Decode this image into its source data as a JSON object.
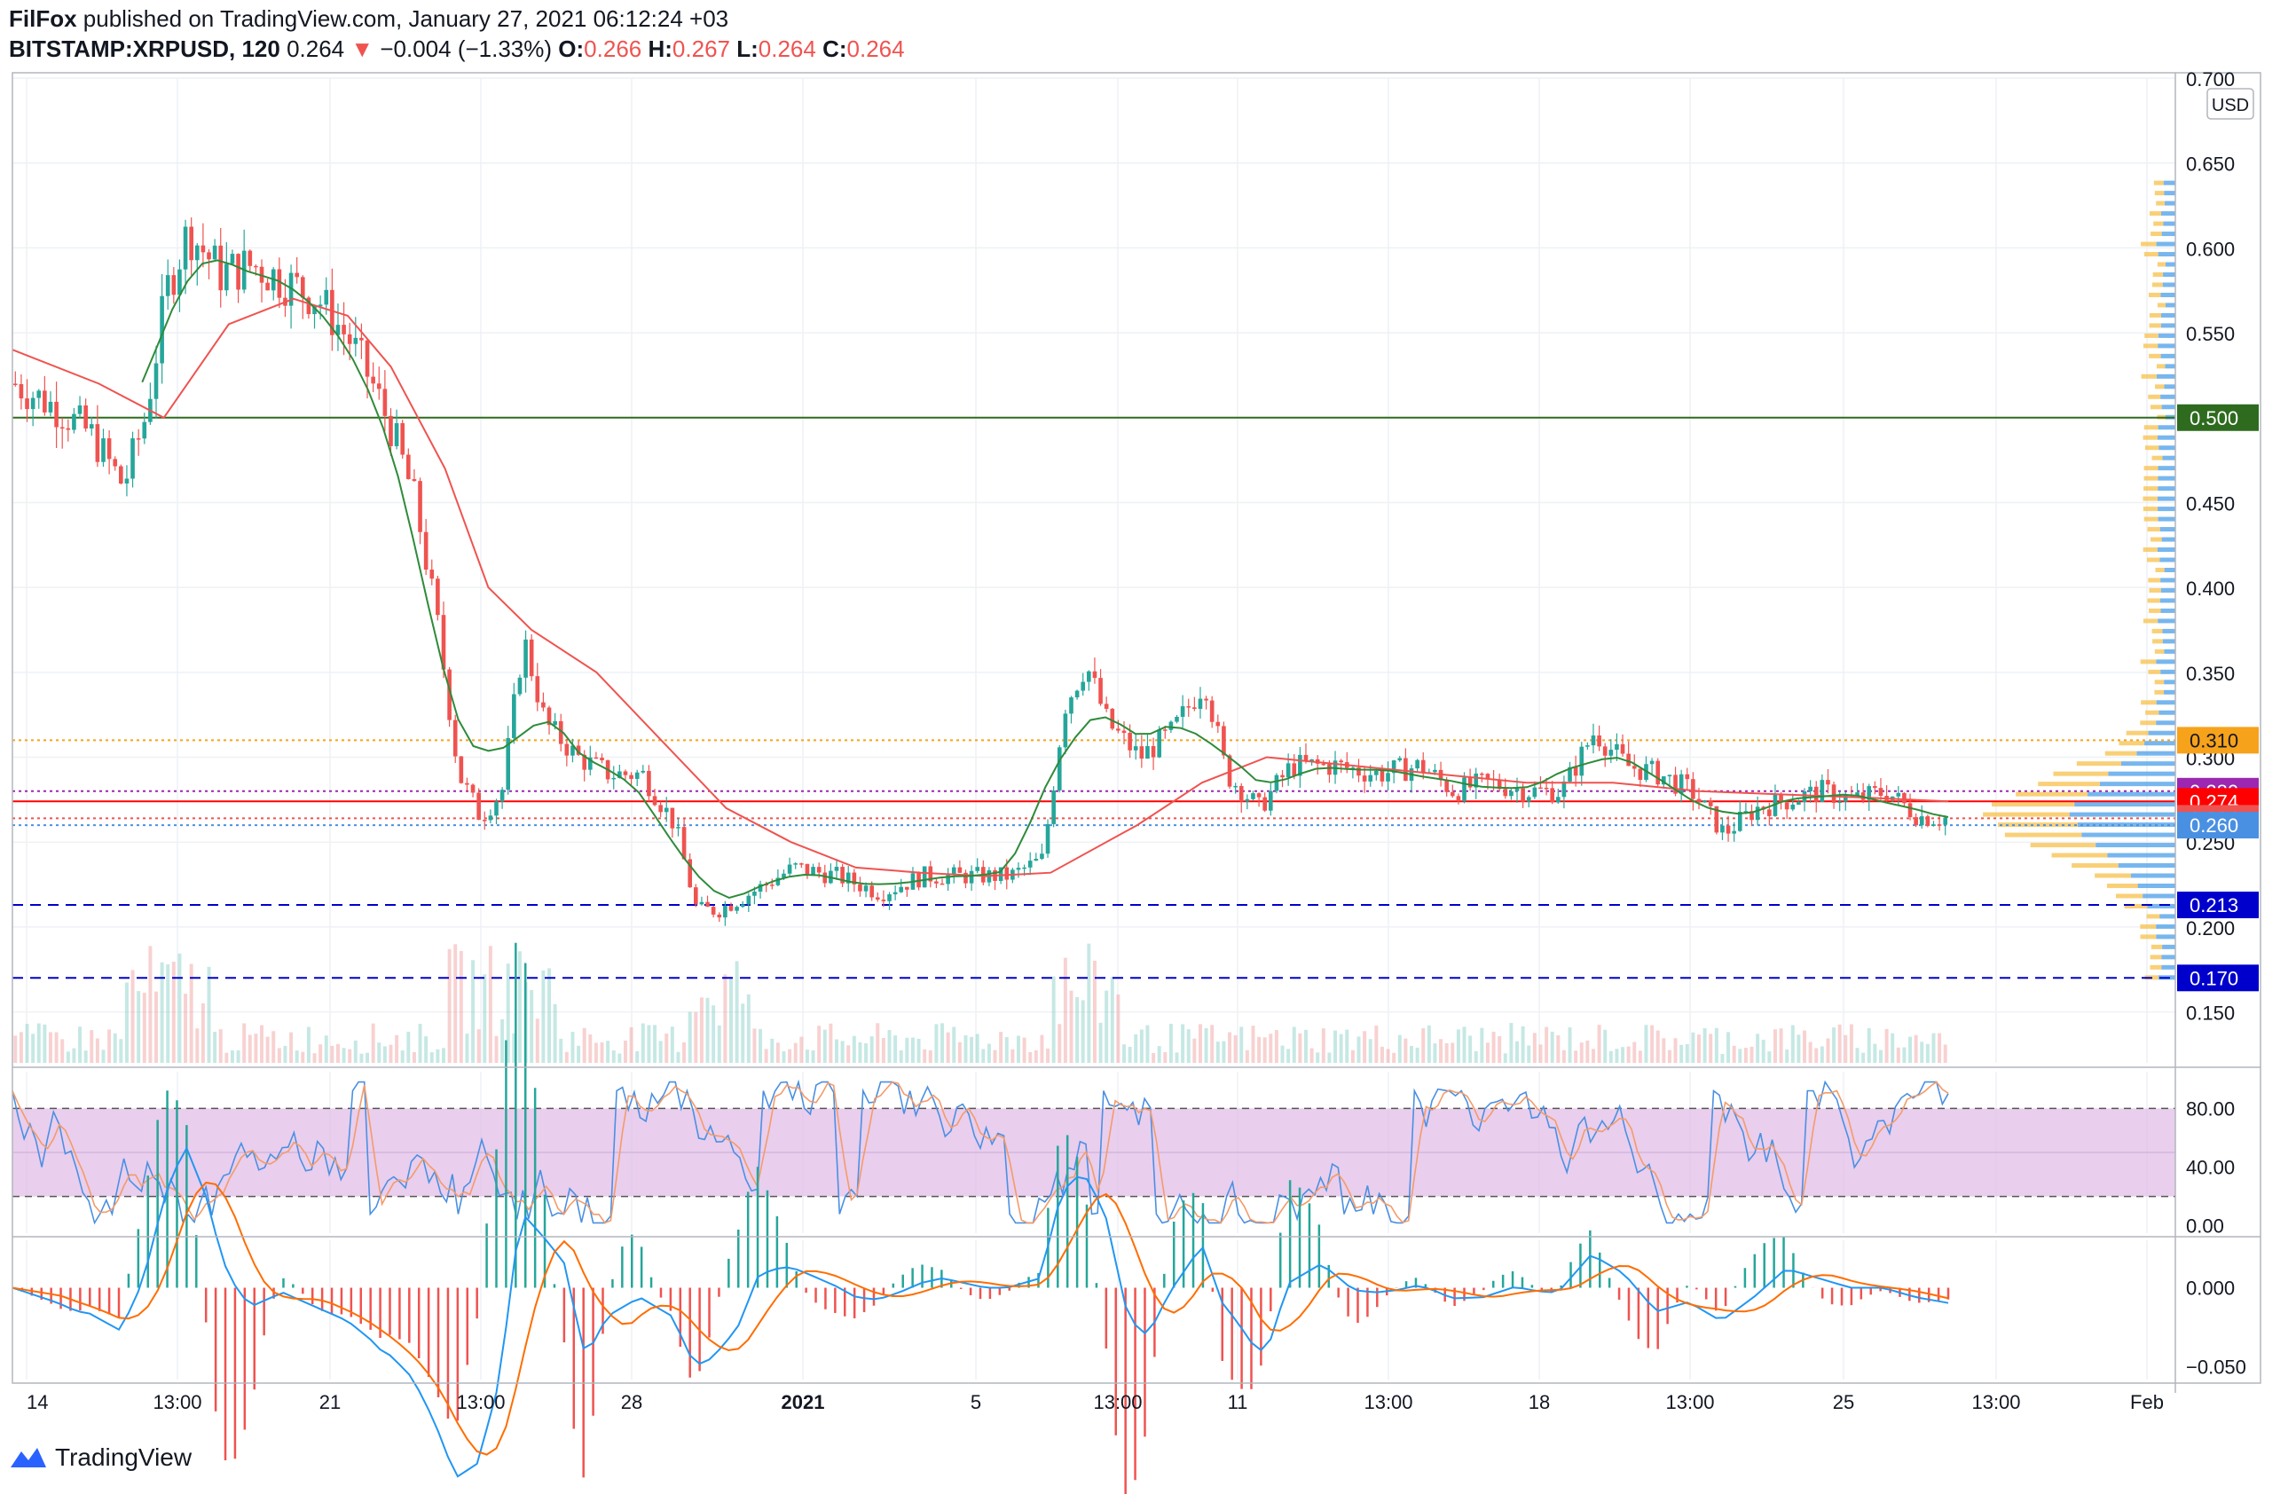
{
  "header": {
    "publisher": "FilFox",
    "published_text": "published on TradingView.com, January 27, 2021 06:12:24 +03",
    "symbol": "BITSTAMP:XRPUSD",
    "interval": "120",
    "last": "0.264",
    "arrow": "▼",
    "change": "−0.004 (−1.33%)",
    "o_label": "O:",
    "o_value": "0.266",
    "h_label": "H:",
    "h_value": "0.267",
    "l_label": "L:",
    "l_value": "0.264",
    "c_label": "C:",
    "c_value": "0.264"
  },
  "brand": {
    "name": "TradingView"
  },
  "currency": "USD",
  "colors": {
    "up": "#26a69a",
    "down": "#ef5350",
    "ma_fast": "#2e8b3a",
    "ma_slow": "#ef5350",
    "level_500": "#2e6b1f",
    "level_310": "#f7a21b",
    "level_280": "#9c27b0",
    "level_274": "#ff0000",
    "level_264": "#ef5350",
    "level_260": "#4a90e2",
    "level_213": "#0000cc",
    "level_170": "#0000cc",
    "stoch_band": "#e1bee7"
  },
  "chart_data": [
    {
      "type": "candlestick",
      "x_ticks": [
        "14",
        "13:00",
        "21",
        "13:00",
        "28",
        "2021",
        "5",
        "13:00",
        "11",
        "13:00",
        "18",
        "13:00",
        "25",
        "13:00",
        "Feb"
      ],
      "y_ticks": [
        "0.700",
        "0.650",
        "0.600",
        "0.550",
        "0.500",
        "0.450",
        "0.400",
        "0.350",
        "0.300",
        "0.250",
        "0.200",
        "0.150"
      ],
      "ylim": [
        0.12,
        0.7
      ],
      "close_path": [
        [
          0.0,
          0.52
        ],
        [
          0.02,
          0.505
        ],
        [
          0.035,
          0.49
        ],
        [
          0.05,
          0.46
        ],
        [
          0.06,
          0.5
        ],
        [
          0.07,
          0.575
        ],
        [
          0.08,
          0.61
        ],
        [
          0.095,
          0.585
        ],
        [
          0.11,
          0.59
        ],
        [
          0.125,
          0.58
        ],
        [
          0.14,
          0.57
        ],
        [
          0.155,
          0.545
        ],
        [
          0.165,
          0.52
        ],
        [
          0.175,
          0.49
        ],
        [
          0.185,
          0.45
        ],
        [
          0.195,
          0.38
        ],
        [
          0.205,
          0.29
        ],
        [
          0.215,
          0.265
        ],
        [
          0.225,
          0.28
        ],
        [
          0.235,
          0.37
        ],
        [
          0.245,
          0.32
        ],
        [
          0.26,
          0.3
        ],
        [
          0.275,
          0.29
        ],
        [
          0.29,
          0.29
        ],
        [
          0.305,
          0.26
        ],
        [
          0.315,
          0.21
        ],
        [
          0.325,
          0.21
        ],
        [
          0.34,
          0.22
        ],
        [
          0.36,
          0.235
        ],
        [
          0.38,
          0.23
        ],
        [
          0.4,
          0.22
        ],
        [
          0.42,
          0.23
        ],
        [
          0.44,
          0.23
        ],
        [
          0.46,
          0.23
        ],
        [
          0.475,
          0.24
        ],
        [
          0.485,
          0.33
        ],
        [
          0.495,
          0.355
        ],
        [
          0.505,
          0.32
        ],
        [
          0.52,
          0.3
        ],
        [
          0.535,
          0.315
        ],
        [
          0.55,
          0.345
        ],
        [
          0.56,
          0.29
        ],
        [
          0.575,
          0.27
        ],
        [
          0.59,
          0.295
        ],
        [
          0.61,
          0.295
        ],
        [
          0.63,
          0.29
        ],
        [
          0.65,
          0.295
        ],
        [
          0.665,
          0.28
        ],
        [
          0.68,
          0.285
        ],
        [
          0.7,
          0.28
        ],
        [
          0.715,
          0.28
        ],
        [
          0.73,
          0.315
        ],
        [
          0.745,
          0.295
        ],
        [
          0.76,
          0.29
        ],
        [
          0.775,
          0.28
        ],
        [
          0.79,
          0.255
        ],
        [
          0.805,
          0.27
        ],
        [
          0.82,
          0.275
        ],
        [
          0.835,
          0.28
        ],
        [
          0.85,
          0.275
        ],
        [
          0.865,
          0.28
        ],
        [
          0.88,
          0.265
        ],
        [
          0.895,
          0.264
        ]
      ],
      "ma_fast_path": [
        [
          0.06,
          0.5
        ],
        [
          0.08,
          0.53
        ],
        [
          0.1,
          0.555
        ],
        [
          0.12,
          0.565
        ],
        [
          0.14,
          0.565
        ],
        [
          0.15,
          0.56
        ]
      ],
      "ma_slow_path": [
        [
          0.0,
          0.54
        ],
        [
          0.04,
          0.52
        ],
        [
          0.07,
          0.5
        ],
        [
          0.1,
          0.555
        ],
        [
          0.13,
          0.57
        ],
        [
          0.155,
          0.56
        ],
        [
          0.175,
          0.53
        ],
        [
          0.2,
          0.47
        ],
        [
          0.22,
          0.4
        ],
        [
          0.24,
          0.375
        ],
        [
          0.27,
          0.35
        ],
        [
          0.3,
          0.31
        ],
        [
          0.33,
          0.27
        ],
        [
          0.36,
          0.25
        ],
        [
          0.39,
          0.235
        ],
        [
          0.42,
          0.232
        ],
        [
          0.45,
          0.23
        ],
        [
          0.48,
          0.232
        ],
        [
          0.52,
          0.26
        ],
        [
          0.55,
          0.285
        ],
        [
          0.58,
          0.3
        ],
        [
          0.62,
          0.295
        ],
        [
          0.66,
          0.29
        ],
        [
          0.7,
          0.285
        ],
        [
          0.74,
          0.285
        ],
        [
          0.78,
          0.28
        ],
        [
          0.82,
          0.278
        ],
        [
          0.86,
          0.276
        ],
        [
          0.895,
          0.274
        ]
      ],
      "levels": [
        {
          "value": 0.5,
          "label": "0.500",
          "style": "solid",
          "color": "#2e6b1f"
        },
        {
          "value": 0.31,
          "label": "0.310",
          "style": "dotted",
          "color": "#f7a21b"
        },
        {
          "value": 0.28,
          "label": "0.280",
          "style": "dotted",
          "color": "#9c27b0"
        },
        {
          "value": 0.274,
          "label": "0.274",
          "style": "solid",
          "color": "#ff0000"
        },
        {
          "value": 0.264,
          "label": "0.264",
          "style": "dotted",
          "color": "#ef5350"
        },
        {
          "value": 0.26,
          "label": "0.260",
          "style": "dotted",
          "color": "#4a90e2"
        },
        {
          "value": 0.213,
          "label": "0.213",
          "style": "dashed",
          "color": "#0000cc"
        },
        {
          "value": 0.17,
          "label": "0.170",
          "style": "dashed",
          "color": "#0000cc"
        }
      ]
    },
    {
      "type": "line",
      "indicator": "stochastic",
      "y_ticks": [
        "80.00",
        "40.00",
        "0.00"
      ],
      "ylim": [
        -5,
        105
      ],
      "band": [
        20,
        80
      ]
    },
    {
      "type": "line",
      "indicator": "macd",
      "y_ticks": [
        "0.000",
        "−0.050"
      ],
      "ylim": [
        -0.058,
        0.03
      ]
    }
  ]
}
